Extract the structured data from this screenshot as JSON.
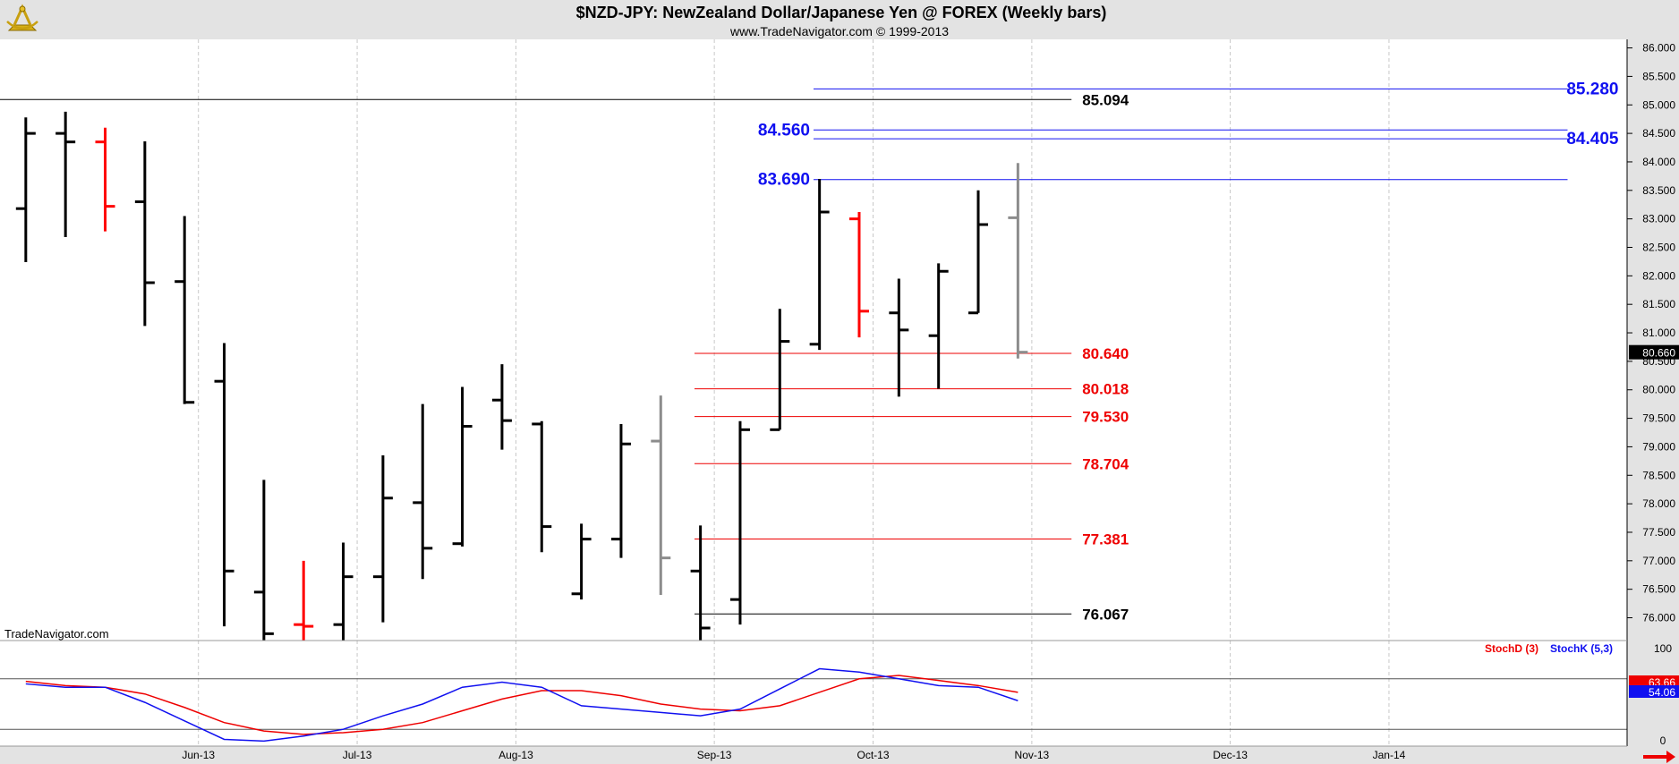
{
  "title": "$NZD-JPY:  NewZealand Dollar/Japanese Yen @ FOREX  (Weekly bars)",
  "subtitle": "www.TradeNavigator.com © 1999-2013",
  "watermark": "TradeNavigator.com",
  "indicator_legend": {
    "stoch_d": "StochD (3)",
    "stoch_k": "StochK (5,3)"
  },
  "last_price_label": "80.660",
  "colors": {
    "background": "#ffffff",
    "header_bg": "#e3e3e3",
    "bar_default": "#000000",
    "bar_down": "#ff0000",
    "bar_neutral": "#8c8c8c",
    "bar_up_tick": "#00dd00",
    "resistance": "#1010f0",
    "support": "#ee0000",
    "stoch_d": "#ee0000",
    "stoch_k": "#1010f0",
    "grid": "#c8c8c8"
  },
  "icons": {
    "logo": "sextant-logo-icon",
    "scroll": "right-arrow-icon"
  },
  "chart_data": {
    "type": "ohlc",
    "price_axis": {
      "ylim": [
        75.6,
        86.15
      ],
      "ticks": [
        76.0,
        76.5,
        77.0,
        77.5,
        78.0,
        78.5,
        79.0,
        79.5,
        80.0,
        80.5,
        81.0,
        81.5,
        82.0,
        82.5,
        83.0,
        83.5,
        84.0,
        84.5,
        85.0,
        85.5,
        86.0
      ],
      "tick_labels": [
        "76.000",
        "76.500",
        "77.000",
        "77.500",
        "78.000",
        "78.500",
        "79.000",
        "79.500",
        "80.000",
        "80.500",
        "81.000",
        "81.500",
        "82.000",
        "82.500",
        "83.000",
        "83.500",
        "84.000",
        "84.500",
        "85.000",
        "85.500",
        "86.000"
      ]
    },
    "time_axis": {
      "xlim": [
        0,
        41
      ],
      "month_gridlines": [
        5,
        9,
        13,
        18,
        22,
        26,
        31,
        35
      ],
      "month_labels": [
        {
          "x": 5,
          "label": "Jun-13"
        },
        {
          "x": 9,
          "label": "Jul-13"
        },
        {
          "x": 13,
          "label": "Aug-13"
        },
        {
          "x": 18,
          "label": "Sep-13"
        },
        {
          "x": 22,
          "label": "Oct-13"
        },
        {
          "x": 26,
          "label": "Nov-13"
        },
        {
          "x": 31,
          "label": "Dec-13"
        },
        {
          "x": 35,
          "label": "Jan-14"
        }
      ]
    },
    "bars": [
      {
        "x": 0.65,
        "open": 83.18,
        "high": 84.78,
        "low": 82.24,
        "close": 84.5,
        "color": "#000000"
      },
      {
        "x": 1.65,
        "open": 84.5,
        "high": 84.88,
        "low": 82.68,
        "close": 84.35,
        "color": "#000000"
      },
      {
        "x": 2.65,
        "open": 84.35,
        "high": 84.6,
        "low": 82.78,
        "close": 83.22,
        "color": "#ff0000"
      },
      {
        "x": 3.65,
        "open": 83.3,
        "high": 84.36,
        "low": 81.12,
        "close": 81.88,
        "color": "#000000"
      },
      {
        "x": 4.65,
        "open": 81.9,
        "high": 83.05,
        "low": 79.75,
        "close": 79.78,
        "color": "#000000"
      },
      {
        "x": 5.65,
        "open": 80.15,
        "high": 80.82,
        "low": 75.85,
        "close": 76.82,
        "color": "#000000"
      },
      {
        "x": 6.65,
        "open": 76.45,
        "high": 78.42,
        "low": 75.6,
        "close": 75.72,
        "color": "#000000"
      },
      {
        "x": 7.65,
        "open": 75.88,
        "high": 77.0,
        "low": 75.6,
        "close": 75.85,
        "color": "#ff0000"
      },
      {
        "x": 8.65,
        "open": 75.88,
        "high": 77.32,
        "low": 75.6,
        "close": 76.72,
        "color": "#000000"
      },
      {
        "x": 9.65,
        "open": 76.72,
        "high": 78.85,
        "low": 75.92,
        "close": 78.1,
        "color": "#000000"
      },
      {
        "x": 10.65,
        "open": 78.02,
        "high": 79.75,
        "low": 76.68,
        "close": 77.22,
        "color": "#000000"
      },
      {
        "x": 11.65,
        "open": 77.3,
        "high": 80.05,
        "low": 77.25,
        "close": 79.36,
        "color": "#000000"
      },
      {
        "x": 12.65,
        "open": 79.82,
        "high": 80.45,
        "low": 78.95,
        "close": 79.46,
        "color": "#000000"
      },
      {
        "x": 13.65,
        "open": 79.4,
        "high": 79.45,
        "low": 77.15,
        "close": 77.6,
        "color": "#000000"
      },
      {
        "x": 14.65,
        "open": 76.42,
        "high": 77.65,
        "low": 76.32,
        "close": 77.38,
        "color": "#000000"
      },
      {
        "x": 15.65,
        "open": 77.38,
        "high": 79.4,
        "low": 77.05,
        "close": 79.05,
        "color": "#000000"
      },
      {
        "x": 16.65,
        "open": 79.1,
        "high": 79.9,
        "low": 76.4,
        "close": 77.05,
        "color": "#8c8c8c"
      },
      {
        "x": 17.65,
        "open": 76.82,
        "high": 77.62,
        "low": 75.6,
        "close": 75.82,
        "color": "#000000"
      },
      {
        "x": 18.65,
        "open": 76.32,
        "high": 79.45,
        "low": 75.88,
        "close": 79.3,
        "color": "#000000"
      },
      {
        "x": 19.65,
        "open": 79.3,
        "high": 81.42,
        "low": 79.3,
        "close": 80.85,
        "color": "#000000"
      },
      {
        "x": 20.65,
        "open": 80.8,
        "high": 83.7,
        "low": 80.7,
        "close": 83.12,
        "color": "#000000"
      },
      {
        "x": 21.65,
        "open": 83.0,
        "high": 83.12,
        "low": 80.92,
        "close": 81.38,
        "color": "#ff0000"
      },
      {
        "x": 22.65,
        "open": 81.35,
        "high": 81.95,
        "low": 79.88,
        "close": 81.05,
        "color": "#000000"
      },
      {
        "x": 23.65,
        "open": 80.95,
        "high": 82.22,
        "low": 80.02,
        "close": 82.08,
        "color": "#000000"
      },
      {
        "x": 24.65,
        "open": 81.35,
        "high": 83.5,
        "low": 81.35,
        "close": 82.9,
        "color": "#000000"
      },
      {
        "x": 25.65,
        "open": 83.02,
        "high": 83.98,
        "low": 80.55,
        "close": 80.66,
        "color": "#8c8c8c"
      }
    ],
    "level_lines": [
      {
        "value": 85.094,
        "label": "85.094",
        "color": "#000000",
        "x_start": 0,
        "x_end": 27
      },
      {
        "value": 85.28,
        "label": "85.280",
        "color": "#1010f0",
        "x_start": 20.5,
        "x_end": 39.5,
        "label_pos": "right"
      },
      {
        "value": 84.56,
        "label": "84.560",
        "color": "#1010f0",
        "x_start": 20.5,
        "x_end": 39.5,
        "label_pos": "left"
      },
      {
        "value": 84.405,
        "label": "84.405",
        "color": "#1010f0",
        "x_start": 20.5,
        "x_end": 39.5,
        "label_pos": "right"
      },
      {
        "value": 83.69,
        "label": "83.690",
        "color": "#1010f0",
        "x_start": 20.5,
        "x_end": 39.5,
        "label_pos": "left"
      },
      {
        "value": 80.64,
        "label": "80.640",
        "color": "#ee0000",
        "x_start": 17.5,
        "x_end": 27
      },
      {
        "value": 80.018,
        "label": "80.018",
        "color": "#ee0000",
        "x_start": 17.5,
        "x_end": 27
      },
      {
        "value": 79.53,
        "label": "79.530",
        "color": "#ee0000",
        "x_start": 17.5,
        "x_end": 27
      },
      {
        "value": 78.704,
        "label": "78.704",
        "color": "#ee0000",
        "x_start": 17.5,
        "x_end": 27
      },
      {
        "value": 77.381,
        "label": "77.381",
        "color": "#ee0000",
        "x_start": 17.5,
        "x_end": 27
      },
      {
        "value": 76.067,
        "label": "76.067",
        "color": "#000000",
        "x_start": 17.5,
        "x_end": 27
      }
    ],
    "stochastic": {
      "ylim": [
        0,
        100
      ],
      "tick_labels": [
        {
          "v": 0,
          "label": "0"
        },
        {
          "v": 100,
          "label": "100"
        }
      ],
      "reference_lines": [
        80,
        20
      ],
      "last_values": [
        "63.66",
        "54.06"
      ],
      "series": [
        {
          "name": "StochD (3)",
          "color": "#ee0000",
          "x": [
            0.65,
            1.65,
            2.65,
            3.65,
            4.65,
            5.65,
            6.65,
            7.65,
            8.65,
            9.65,
            10.65,
            11.65,
            12.65,
            13.65,
            14.65,
            15.65,
            16.65,
            17.65,
            18.65,
            19.65,
            20.65,
            21.65,
            22.65,
            23.65,
            24.65,
            25.65
          ],
          "values": [
            77,
            72,
            70,
            62,
            46,
            28,
            18,
            14,
            16,
            20,
            28,
            42,
            56,
            66,
            66,
            60,
            50,
            44,
            42,
            48,
            64,
            80,
            84,
            78,
            72,
            64
          ]
        },
        {
          "name": "StochK (5,3)",
          "color": "#1010f0",
          "x": [
            0.65,
            1.65,
            2.65,
            3.65,
            4.65,
            5.65,
            6.65,
            7.65,
            8.65,
            9.65,
            10.65,
            11.65,
            12.65,
            13.65,
            14.65,
            15.65,
            16.65,
            17.65,
            18.65,
            19.65,
            20.65,
            21.65,
            22.65,
            23.65,
            24.65,
            25.65
          ],
          "values": [
            74,
            70,
            70,
            52,
            30,
            8,
            6,
            12,
            20,
            36,
            50,
            70,
            76,
            70,
            48,
            44,
            40,
            36,
            44,
            68,
            92,
            88,
            80,
            72,
            70,
            54
          ]
        }
      ]
    }
  }
}
